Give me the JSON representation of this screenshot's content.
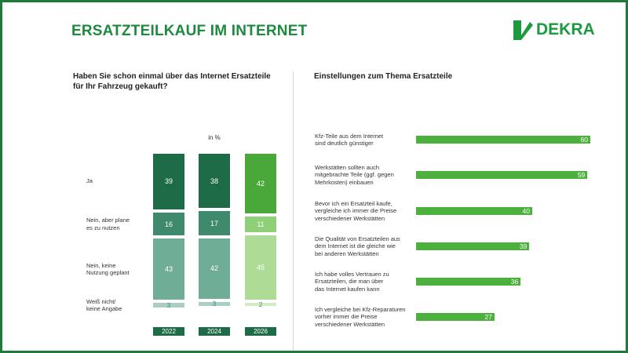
{
  "header": {
    "title": "ERSATZTEILKAUF IM INTERNET",
    "logo": "DEKRA"
  },
  "chart_data": [
    {
      "type": "stacked_bar",
      "title": "Haben Sie schon einmal über das Internet Ersatzteile\nfür Ihr Fahrzeug gekauft?",
      "unit_label": "in %",
      "categories": [
        "2022",
        "2024",
        "2026"
      ],
      "series": [
        {
          "name": "Ja",
          "colors": [
            "#1d6b47",
            "#1d6b47",
            "#4aa83a"
          ],
          "values": [
            39,
            38,
            42
          ]
        },
        {
          "name": "Nein, aber plane\nes zu nutzen",
          "colors": [
            "#3f8a6c",
            "#3f8a6c",
            "#8fcf78"
          ],
          "values": [
            16,
            17,
            11
          ]
        },
        {
          "name": "Nein, keine\nNutzung geplant",
          "colors": [
            "#70ad97",
            "#70ad97",
            "#aedb95"
          ],
          "values": [
            43,
            42,
            45
          ]
        },
        {
          "name": "Weiß nicht/\nkeine Angabe",
          "colors": [
            "#aacfc1",
            "#aacfc1",
            "#d3ebc4"
          ],
          "values": [
            3,
            3,
            2
          ]
        }
      ]
    },
    {
      "type": "hbar",
      "title": "Einstellungen zum Thema Ersatzteile",
      "categories": [
        "Kfz-Teile aus dem Internet\nsind deutlich günstiger",
        "Werkstätten sollten auch\nmitgebrachte Teile (ggf. gegen\nMehrkosten) einbauen",
        "Bevor ich ein Ersatzteil kaufe,\nvergleiche ich immer die Preise\nverschiedener Werkstätten",
        "Die Qualität von Ersatzteilen aus\ndem Internet ist die gleiche wie\nbei anderen Werkstätten",
        "Ich habe volles Vertrauen zu\nErsatzteilen, die man über\ndas Internet kaufen kann",
        "Ich vergleiche bei Kfz-Reparaturen\nvorher immer die Preise\nverschiedener Werkstätten"
      ],
      "values": [
        60,
        59,
        40,
        39,
        36,
        27
      ],
      "color": "#4cb03c"
    }
  ]
}
